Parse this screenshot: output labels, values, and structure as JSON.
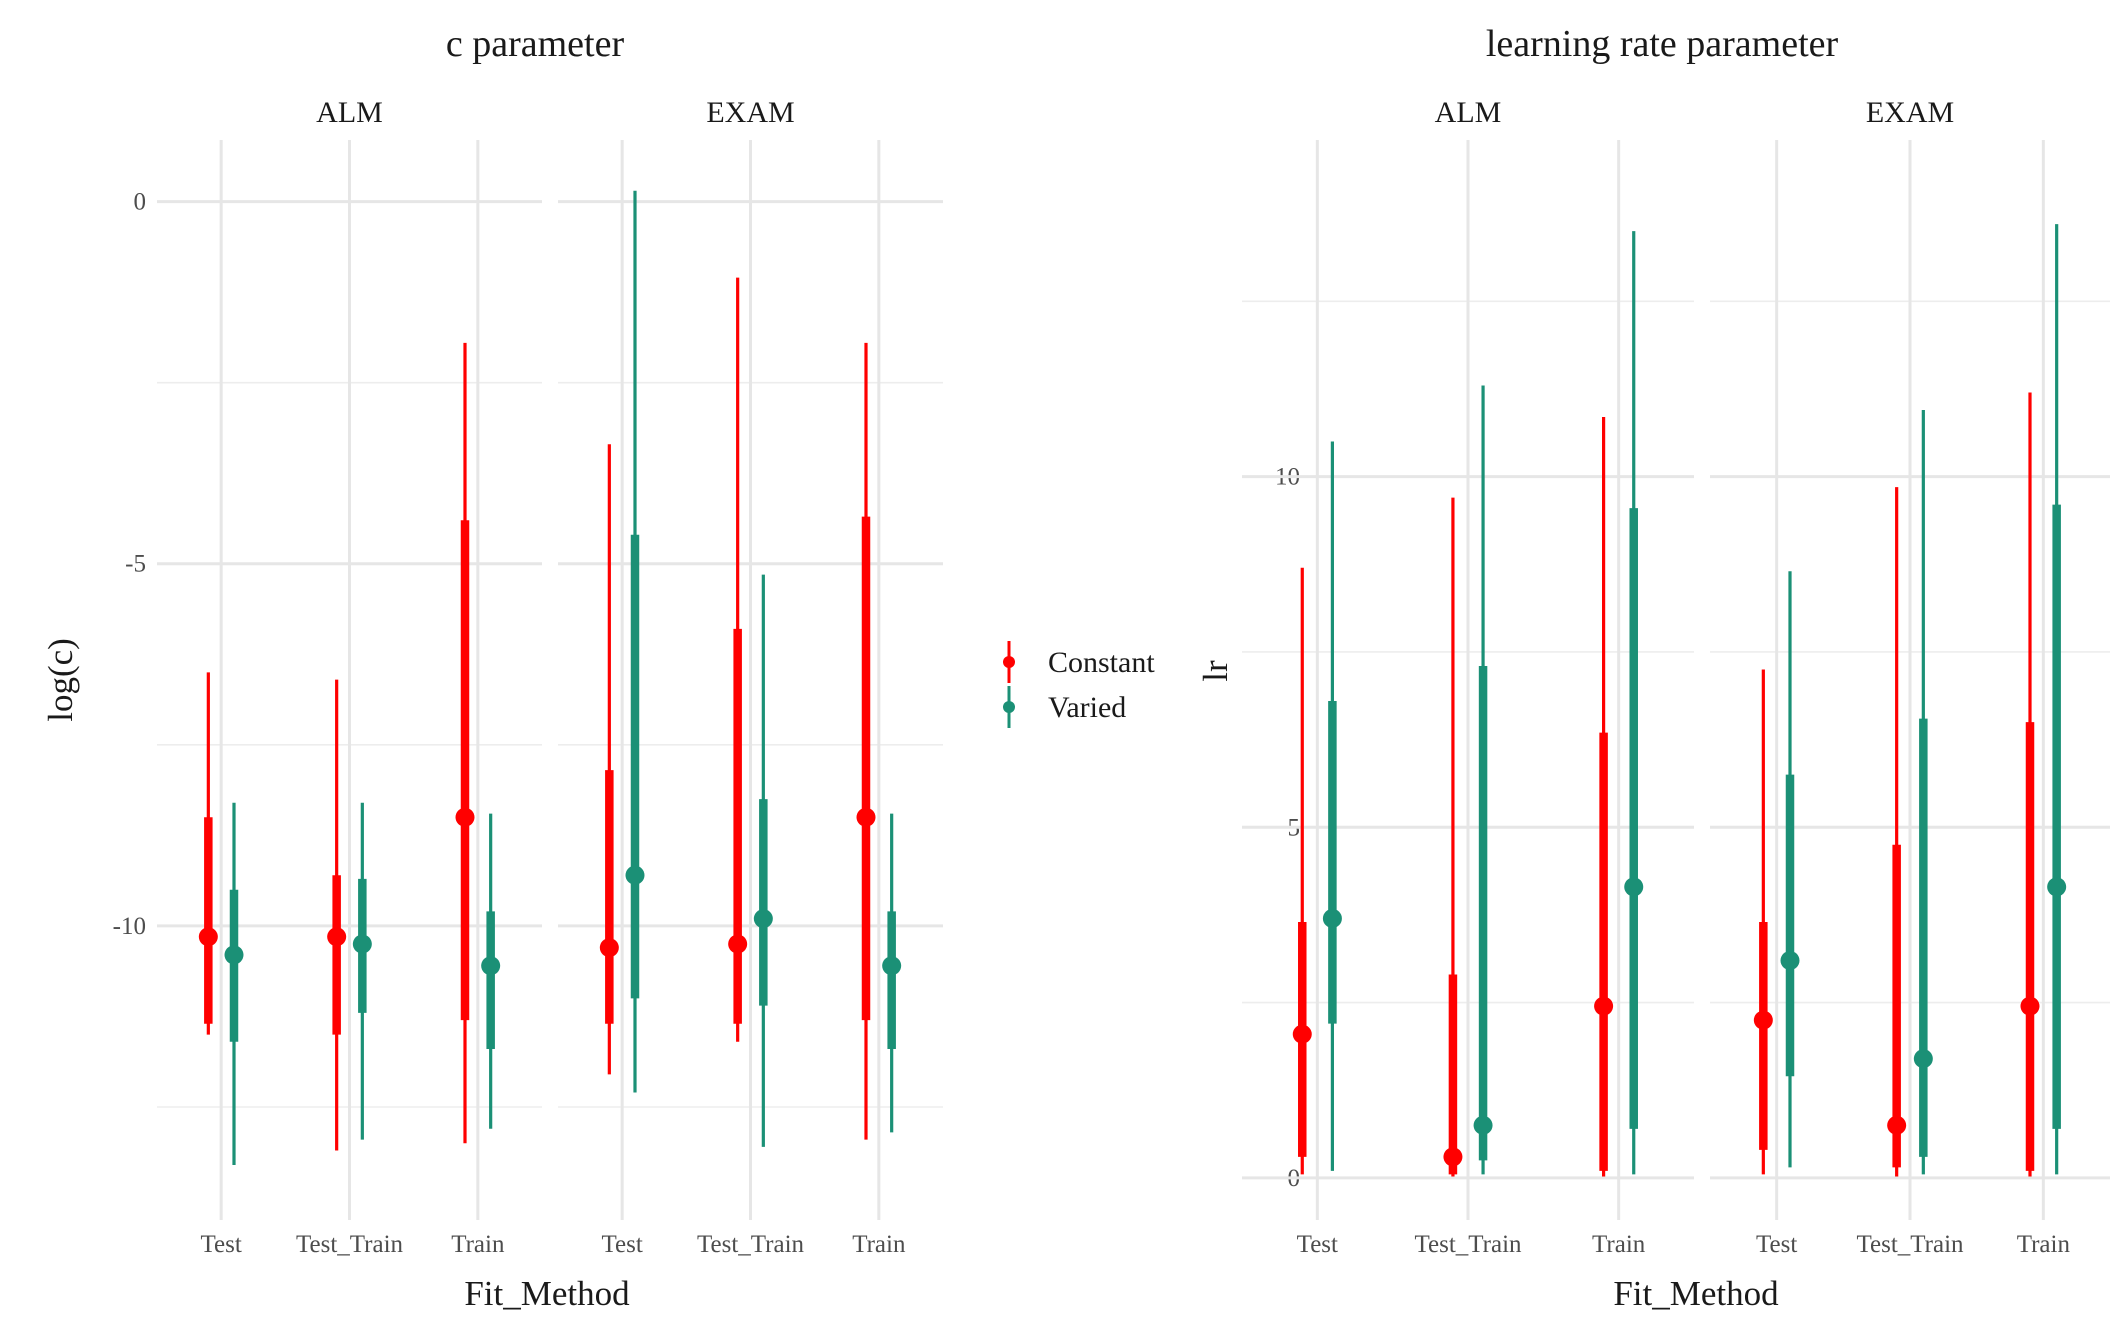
{
  "colors": {
    "Constant": "#ff0000",
    "Varied": "#1b9076"
  },
  "legend": {
    "items": [
      "Constant",
      "Varied"
    ],
    "placement": "between-panels"
  },
  "chart_data": [
    {
      "type": "pointrange",
      "title": "c parameter",
      "xlabel": "Fit_Method",
      "ylabel": "log(c)",
      "ylim": [
        -14.06,
        0.85
      ],
      "yticks": [
        0,
        -5,
        -10
      ],
      "yminor": [
        -2.5,
        -7.5,
        -12.5
      ],
      "grid": true,
      "facets": [
        {
          "name": "ALM",
          "categories": [
            "Test",
            "Test_Train",
            "Train"
          ],
          "series": [
            {
              "name": "Constant",
              "median": [
                -10.15,
                -10.15,
                -8.5
              ],
              "inner": [
                [
                  -11.35,
                  -8.5
                ],
                [
                  -11.5,
                  -9.3
                ],
                [
                  -11.3,
                  -4.4
                ]
              ],
              "outer": [
                [
                  -11.5,
                  -6.5
                ],
                [
                  -13.1,
                  -6.6
                ],
                [
                  -13.0,
                  -1.95
                ]
              ]
            },
            {
              "name": "Varied",
              "median": [
                -10.4,
                -10.25,
                -10.55
              ],
              "inner": [
                [
                  -11.6,
                  -9.5
                ],
                [
                  -11.2,
                  -9.35
                ],
                [
                  -11.7,
                  -9.8
                ]
              ],
              "outer": [
                [
                  -13.3,
                  -8.3
                ],
                [
                  -12.95,
                  -8.3
                ],
                [
                  -12.8,
                  -8.45
                ]
              ]
            }
          ]
        },
        {
          "name": "EXAM",
          "categories": [
            "Test",
            "Test_Train",
            "Train"
          ],
          "series": [
            {
              "name": "Constant",
              "median": [
                -10.3,
                -10.25,
                -8.5
              ],
              "inner": [
                [
                  -11.35,
                  -7.85
                ],
                [
                  -11.35,
                  -5.9
                ],
                [
                  -11.3,
                  -4.35
                ]
              ],
              "outer": [
                [
                  -12.05,
                  -3.35
                ],
                [
                  -11.6,
                  -1.05
                ],
                [
                  -12.95,
                  -1.95
                ]
              ]
            },
            {
              "name": "Varied",
              "median": [
                -9.3,
                -9.9,
                -10.55
              ],
              "inner": [
                [
                  -11.0,
                  -4.6
                ],
                [
                  -11.1,
                  -8.25
                ],
                [
                  -11.7,
                  -9.8
                ]
              ],
              "outer": [
                [
                  -12.3,
                  0.15
                ],
                [
                  -13.05,
                  -5.15
                ],
                [
                  -12.85,
                  -8.45
                ]
              ]
            }
          ]
        }
      ]
    },
    {
      "type": "pointrange",
      "title": "learning rate parameter",
      "xlabel": "Fit_Method",
      "ylabel": "lr",
      "ylim": [
        -0.6,
        14.8
      ],
      "yticks": [
        0,
        5,
        10
      ],
      "yminor": [
        2.5,
        7.5,
        12.5
      ],
      "grid": true,
      "facets": [
        {
          "name": "ALM",
          "categories": [
            "Test",
            "Test_Train",
            "Train"
          ],
          "series": [
            {
              "name": "Constant",
              "median": [
                2.05,
                0.3,
                2.45
              ],
              "inner": [
                [
                  0.3,
                  3.65
                ],
                [
                  0.05,
                  2.9
                ],
                [
                  0.1,
                  6.35
                ]
              ],
              "outer": [
                [
                  0.05,
                  8.7
                ],
                [
                  0.02,
                  9.7
                ],
                [
                  0.02,
                  10.85
                ]
              ]
            },
            {
              "name": "Varied",
              "median": [
                3.7,
                0.75,
                4.15
              ],
              "inner": [
                [
                  2.2,
                  6.8
                ],
                [
                  0.25,
                  7.3
                ],
                [
                  0.7,
                  9.55
                ]
              ],
              "outer": [
                [
                  0.1,
                  10.5
                ],
                [
                  0.05,
                  11.3
                ],
                [
                  0.05,
                  13.5
                ]
              ]
            }
          ]
        },
        {
          "name": "EXAM",
          "categories": [
            "Test",
            "Test_Train",
            "Train"
          ],
          "series": [
            {
              "name": "Constant",
              "median": [
                2.25,
                0.75,
                2.45
              ],
              "inner": [
                [
                  0.4,
                  3.65
                ],
                [
                  0.15,
                  4.75
                ],
                [
                  0.1,
                  6.5
                ]
              ],
              "outer": [
                [
                  0.05,
                  7.25
                ],
                [
                  0.02,
                  9.85
                ],
                [
                  0.02,
                  11.2
                ]
              ]
            },
            {
              "name": "Varied",
              "median": [
                3.1,
                1.7,
                4.15
              ],
              "inner": [
                [
                  1.45,
                  5.75
                ],
                [
                  0.3,
                  6.55
                ],
                [
                  0.7,
                  9.6
                ]
              ],
              "outer": [
                [
                  0.15,
                  8.65
                ],
                [
                  0.05,
                  10.95
                ],
                [
                  0.05,
                  13.6
                ]
              ]
            }
          ]
        }
      ]
    }
  ]
}
